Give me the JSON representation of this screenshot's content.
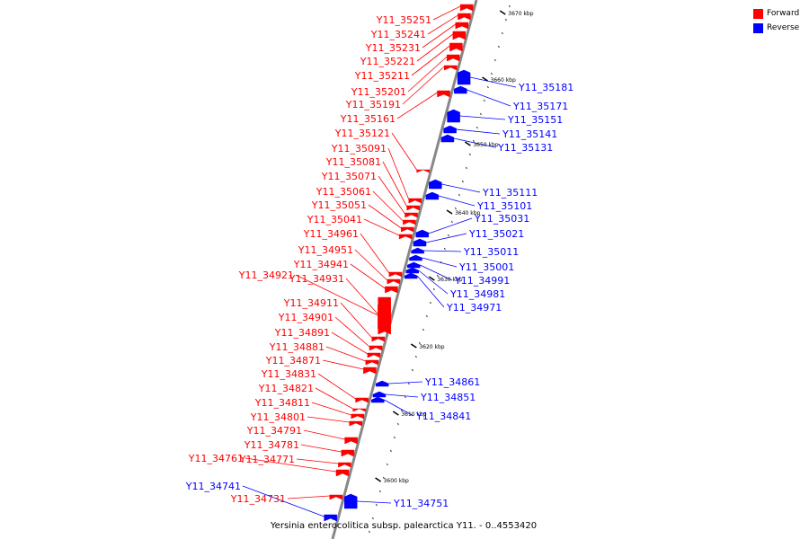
{
  "legend": [
    {
      "label": "Forward",
      "color": "#ff0000"
    },
    {
      "label": "Reverse",
      "color": "#0000ff"
    }
  ],
  "caption": "Yersinia enterocolitica subsp. palearctica Y11. - 0..4553420",
  "colors": {
    "forward": "#ff0000",
    "reverse": "#0000ff",
    "backbone": "#888888"
  },
  "ticks": [
    "3600 kbp",
    "3610 kbp",
    "3620 kbp",
    "3630 kbp",
    "3640 kbp",
    "3650 kbp",
    "3660 kbp",
    "3670 kbp"
  ],
  "forward_genes": [
    "Y11_35251",
    "Y11_35241",
    "Y11_35231",
    "Y11_35221",
    "Y11_35211",
    "Y11_35201",
    "Y11_35191",
    "Y11_35161",
    "Y11_35121",
    "Y11_35091",
    "Y11_35081",
    "Y11_35071",
    "Y11_35061",
    "Y11_35051",
    "Y11_35041",
    "Y11_34961",
    "Y11_34951",
    "Y11_34941",
    "Y11_34931",
    "Y11_34921",
    "Y11_34911",
    "Y11_34901",
    "Y11_34891",
    "Y11_34881",
    "Y11_34871",
    "Y11_34831",
    "Y11_34821",
    "Y11_34811",
    "Y11_34801",
    "Y11_34791",
    "Y11_34781",
    "Y11_34771",
    "Y11_34761",
    "Y11_34731"
  ],
  "reverse_genes": [
    "Y11_35181",
    "Y11_35171",
    "Y11_35151",
    "Y11_35141",
    "Y11_35131",
    "Y11_35111",
    "Y11_35101",
    "Y11_35031",
    "Y11_35021",
    "Y11_35011",
    "Y11_35001",
    "Y11_34991",
    "Y11_34981",
    "Y11_34971",
    "Y11_34861",
    "Y11_34851",
    "Y11_34841",
    "Y11_34751",
    "Y11_34741"
  ]
}
